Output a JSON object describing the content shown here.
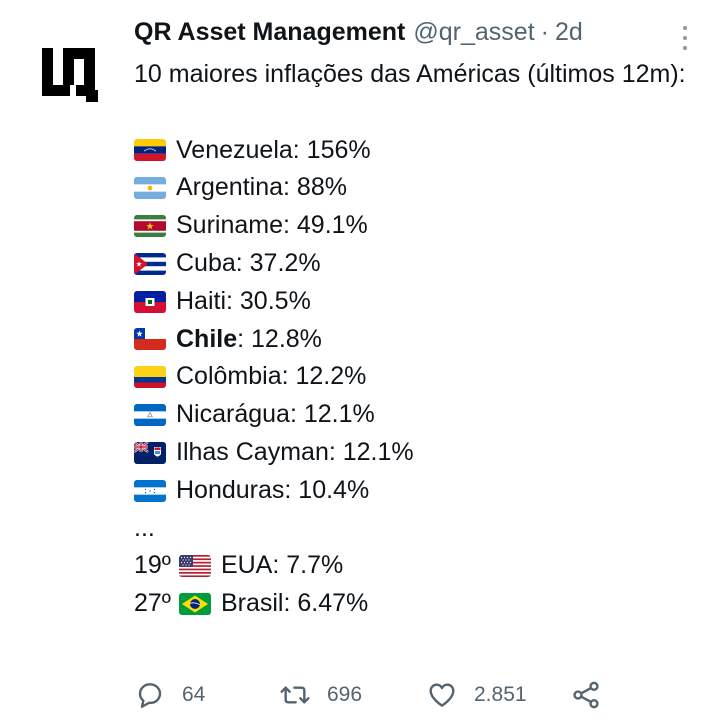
{
  "tweet": {
    "author_name": "QR Asset Management",
    "author_handle": "@qr_asset",
    "separator": "·",
    "time": "2d",
    "intro": "10 maiores inflações das Américas (últimos 12m):",
    "items": [
      {
        "country": "Venezuela",
        "rest": ": 156%",
        "flag": "venezuela-flag"
      },
      {
        "country": "Argentina",
        "rest": ": 88%",
        "flag": "argentina-flag"
      },
      {
        "country": "Suriname",
        "rest": ": 49.1%",
        "flag": "suriname-flag"
      },
      {
        "country": "Cuba",
        "rest": ": 37.2%",
        "flag": "cuba-flag"
      },
      {
        "country": "Haiti",
        "rest": ": 30.5%",
        "flag": "haiti-flag"
      },
      {
        "country": "Chile",
        "rest": ": 12.8%",
        "flag": "chile-flag"
      },
      {
        "country": "Colômbia",
        "rest": ": 12.2%",
        "flag": "colombia-flag"
      },
      {
        "country": "Nicarágua",
        "rest": ": 12.1%",
        "flag": "nicaragua-flag"
      },
      {
        "country": "Ilhas Cayman",
        "rest": ": 12.1%",
        "flag": "cayman-islands-flag"
      },
      {
        "country": "Honduras",
        "rest": ": 10.4%",
        "flag": "honduras-flag"
      }
    ],
    "ellipsis": "...",
    "extras": [
      {
        "rank": "19º",
        "text": "EUA: 7.7%",
        "flag": "usa-flag"
      },
      {
        "rank": "27º",
        "text": "Brasil: 6.47%",
        "flag": "brazil-flag"
      }
    ]
  },
  "actions": {
    "replies": "64",
    "retweets": "696",
    "likes": "2.851"
  },
  "icons": {
    "reply": "reply-icon",
    "retweet": "retweet-icon",
    "like": "heart-icon",
    "share": "share-icon",
    "more": "more-options-icon"
  },
  "colors": {
    "text": "#0f1419",
    "secondary": "#536471"
  }
}
